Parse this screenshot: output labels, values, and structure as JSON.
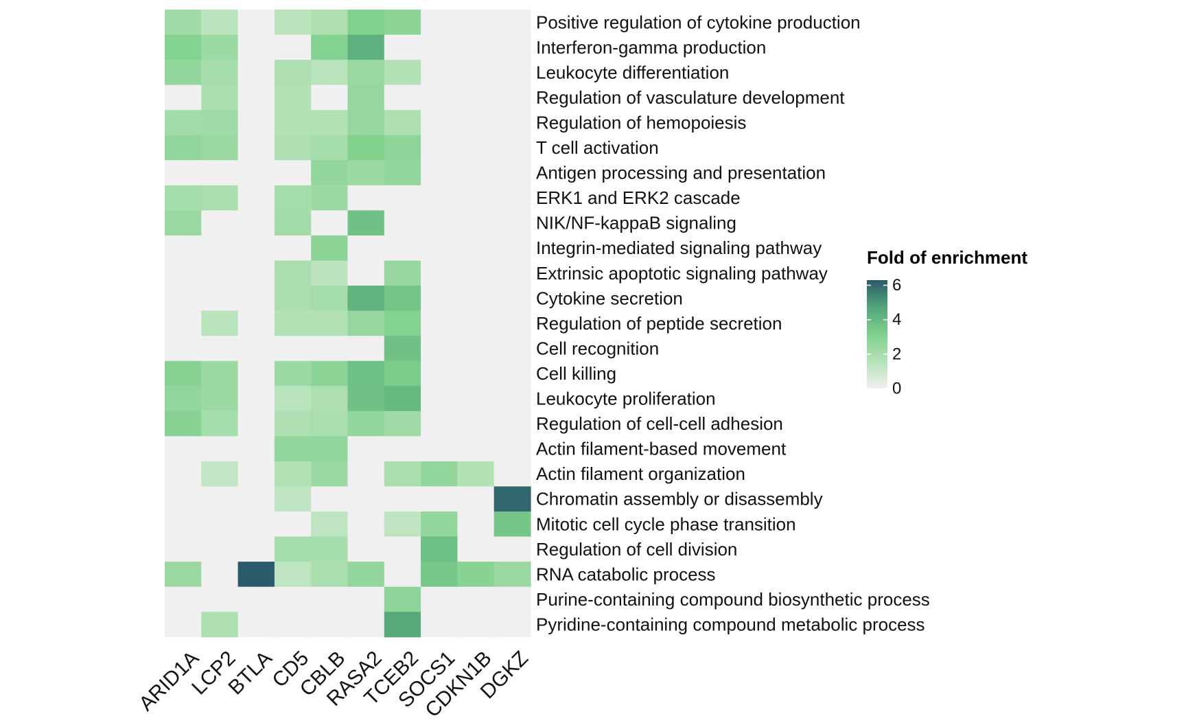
{
  "chart_data": {
    "type": "heatmap",
    "title": "",
    "xlabel": "",
    "ylabel": "",
    "columns": [
      "ARID1A",
      "LCP2",
      "BTLA",
      "CD5",
      "CBLB",
      "RASA2",
      "TCEB2",
      "SOCS1",
      "CDKN1B",
      "DGKZ"
    ],
    "rows": [
      "Positive regulation of cytokine production",
      "Interferon-gamma production",
      "Leukocyte differentiation",
      "Regulation of vasculature development",
      "Regulation of hemopoiesis",
      "T cell activation",
      "Antigen processing and presentation",
      "ERK1 and ERK2 cascade",
      "NIK/NF-kappaB signaling",
      "Integrin-mediated signaling pathway",
      "Extrinsic apoptotic signaling pathway",
      "Cytokine secretion",
      "Regulation of peptide secretion",
      "Cell recognition",
      "Cell killing",
      "Leukocyte proliferation",
      "Regulation of cell-cell adhesion",
      "Actin filament-based movement",
      "Actin filament organization",
      "Chromatin assembly or disassembly",
      "Mitotic cell cycle phase transition",
      "Regulation of cell division",
      "RNA catabolic process",
      "Purine-containing compound biosynthetic process",
      "Pyridine-containing compound metabolic process"
    ],
    "values": [
      [
        2.2,
        1.4,
        0,
        1.5,
        1.8,
        3.1,
        2.8,
        0,
        0,
        0
      ],
      [
        3.0,
        2.3,
        0,
        0,
        3.0,
        4.3,
        0,
        0,
        0,
        0
      ],
      [
        2.6,
        2.0,
        0,
        1.8,
        1.5,
        2.4,
        1.6,
        0,
        0,
        0
      ],
      [
        0,
        1.9,
        0,
        1.7,
        0,
        2.5,
        0,
        0,
        0,
        0
      ],
      [
        2.1,
        2.2,
        0,
        1.6,
        1.7,
        2.5,
        1.8,
        0,
        0,
        0
      ],
      [
        2.6,
        2.4,
        0,
        1.8,
        2.0,
        3.1,
        2.7,
        0,
        0,
        0
      ],
      [
        0,
        0,
        0,
        0,
        2.6,
        2.3,
        2.6,
        0,
        0,
        0
      ],
      [
        2.0,
        1.9,
        0,
        2.0,
        2.3,
        0,
        0,
        0,
        0,
        0
      ],
      [
        2.4,
        0,
        0,
        2.1,
        0,
        3.7,
        0,
        0,
        0,
        0
      ],
      [
        0,
        0,
        0,
        0,
        2.8,
        0,
        0,
        0,
        0,
        0
      ],
      [
        0,
        0,
        0,
        1.9,
        1.4,
        0,
        2.5,
        0,
        0,
        0
      ],
      [
        0,
        0,
        0,
        1.9,
        2.0,
        4.2,
        3.6,
        0,
        0,
        0
      ],
      [
        0,
        1.5,
        0,
        1.6,
        1.7,
        2.5,
        3.0,
        0,
        0,
        0
      ],
      [
        0,
        0,
        0,
        0,
        0,
        0,
        3.7,
        0,
        0,
        0
      ],
      [
        2.9,
        2.3,
        0,
        2.3,
        2.8,
        3.8,
        3.3,
        0,
        0,
        0
      ],
      [
        2.6,
        2.3,
        0,
        1.5,
        1.8,
        3.7,
        4.0,
        0,
        0,
        0
      ],
      [
        2.9,
        2.0,
        0,
        1.8,
        1.9,
        2.6,
        2.2,
        0,
        0,
        0
      ],
      [
        0,
        0,
        0,
        2.6,
        2.6,
        0,
        0,
        0,
        0,
        0
      ],
      [
        0,
        1.2,
        0,
        1.7,
        2.3,
        0,
        1.9,
        2.6,
        1.6,
        0
      ],
      [
        0,
        0,
        0,
        1.3,
        0,
        0,
        0,
        0,
        0,
        6.0
      ],
      [
        0,
        0,
        0,
        0,
        1.3,
        0,
        1.3,
        2.6,
        0,
        3.5
      ],
      [
        0,
        0,
        0,
        2.0,
        2.0,
        0,
        0,
        3.8,
        0,
        0
      ],
      [
        2.4,
        0,
        6.3,
        1.3,
        1.9,
        2.6,
        0,
        3.4,
        2.9,
        2.4
      ],
      [
        0,
        0,
        0,
        0,
        0,
        0,
        2.7,
        0,
        0,
        0
      ],
      [
        0,
        1.8,
        0,
        0,
        0,
        0,
        4.6,
        0,
        0,
        0
      ]
    ],
    "legend": {
      "title": "Fold of enrichment",
      "ticks": [
        "0",
        "2",
        "4",
        "6"
      ],
      "range": [
        0,
        6.3
      ],
      "colors": [
        "#f0f0f0",
        "#b5e2b8",
        "#7fd08c",
        "#52a67a",
        "#2b5a6a"
      ]
    },
    "legend_placement": "right",
    "grid": false
  }
}
